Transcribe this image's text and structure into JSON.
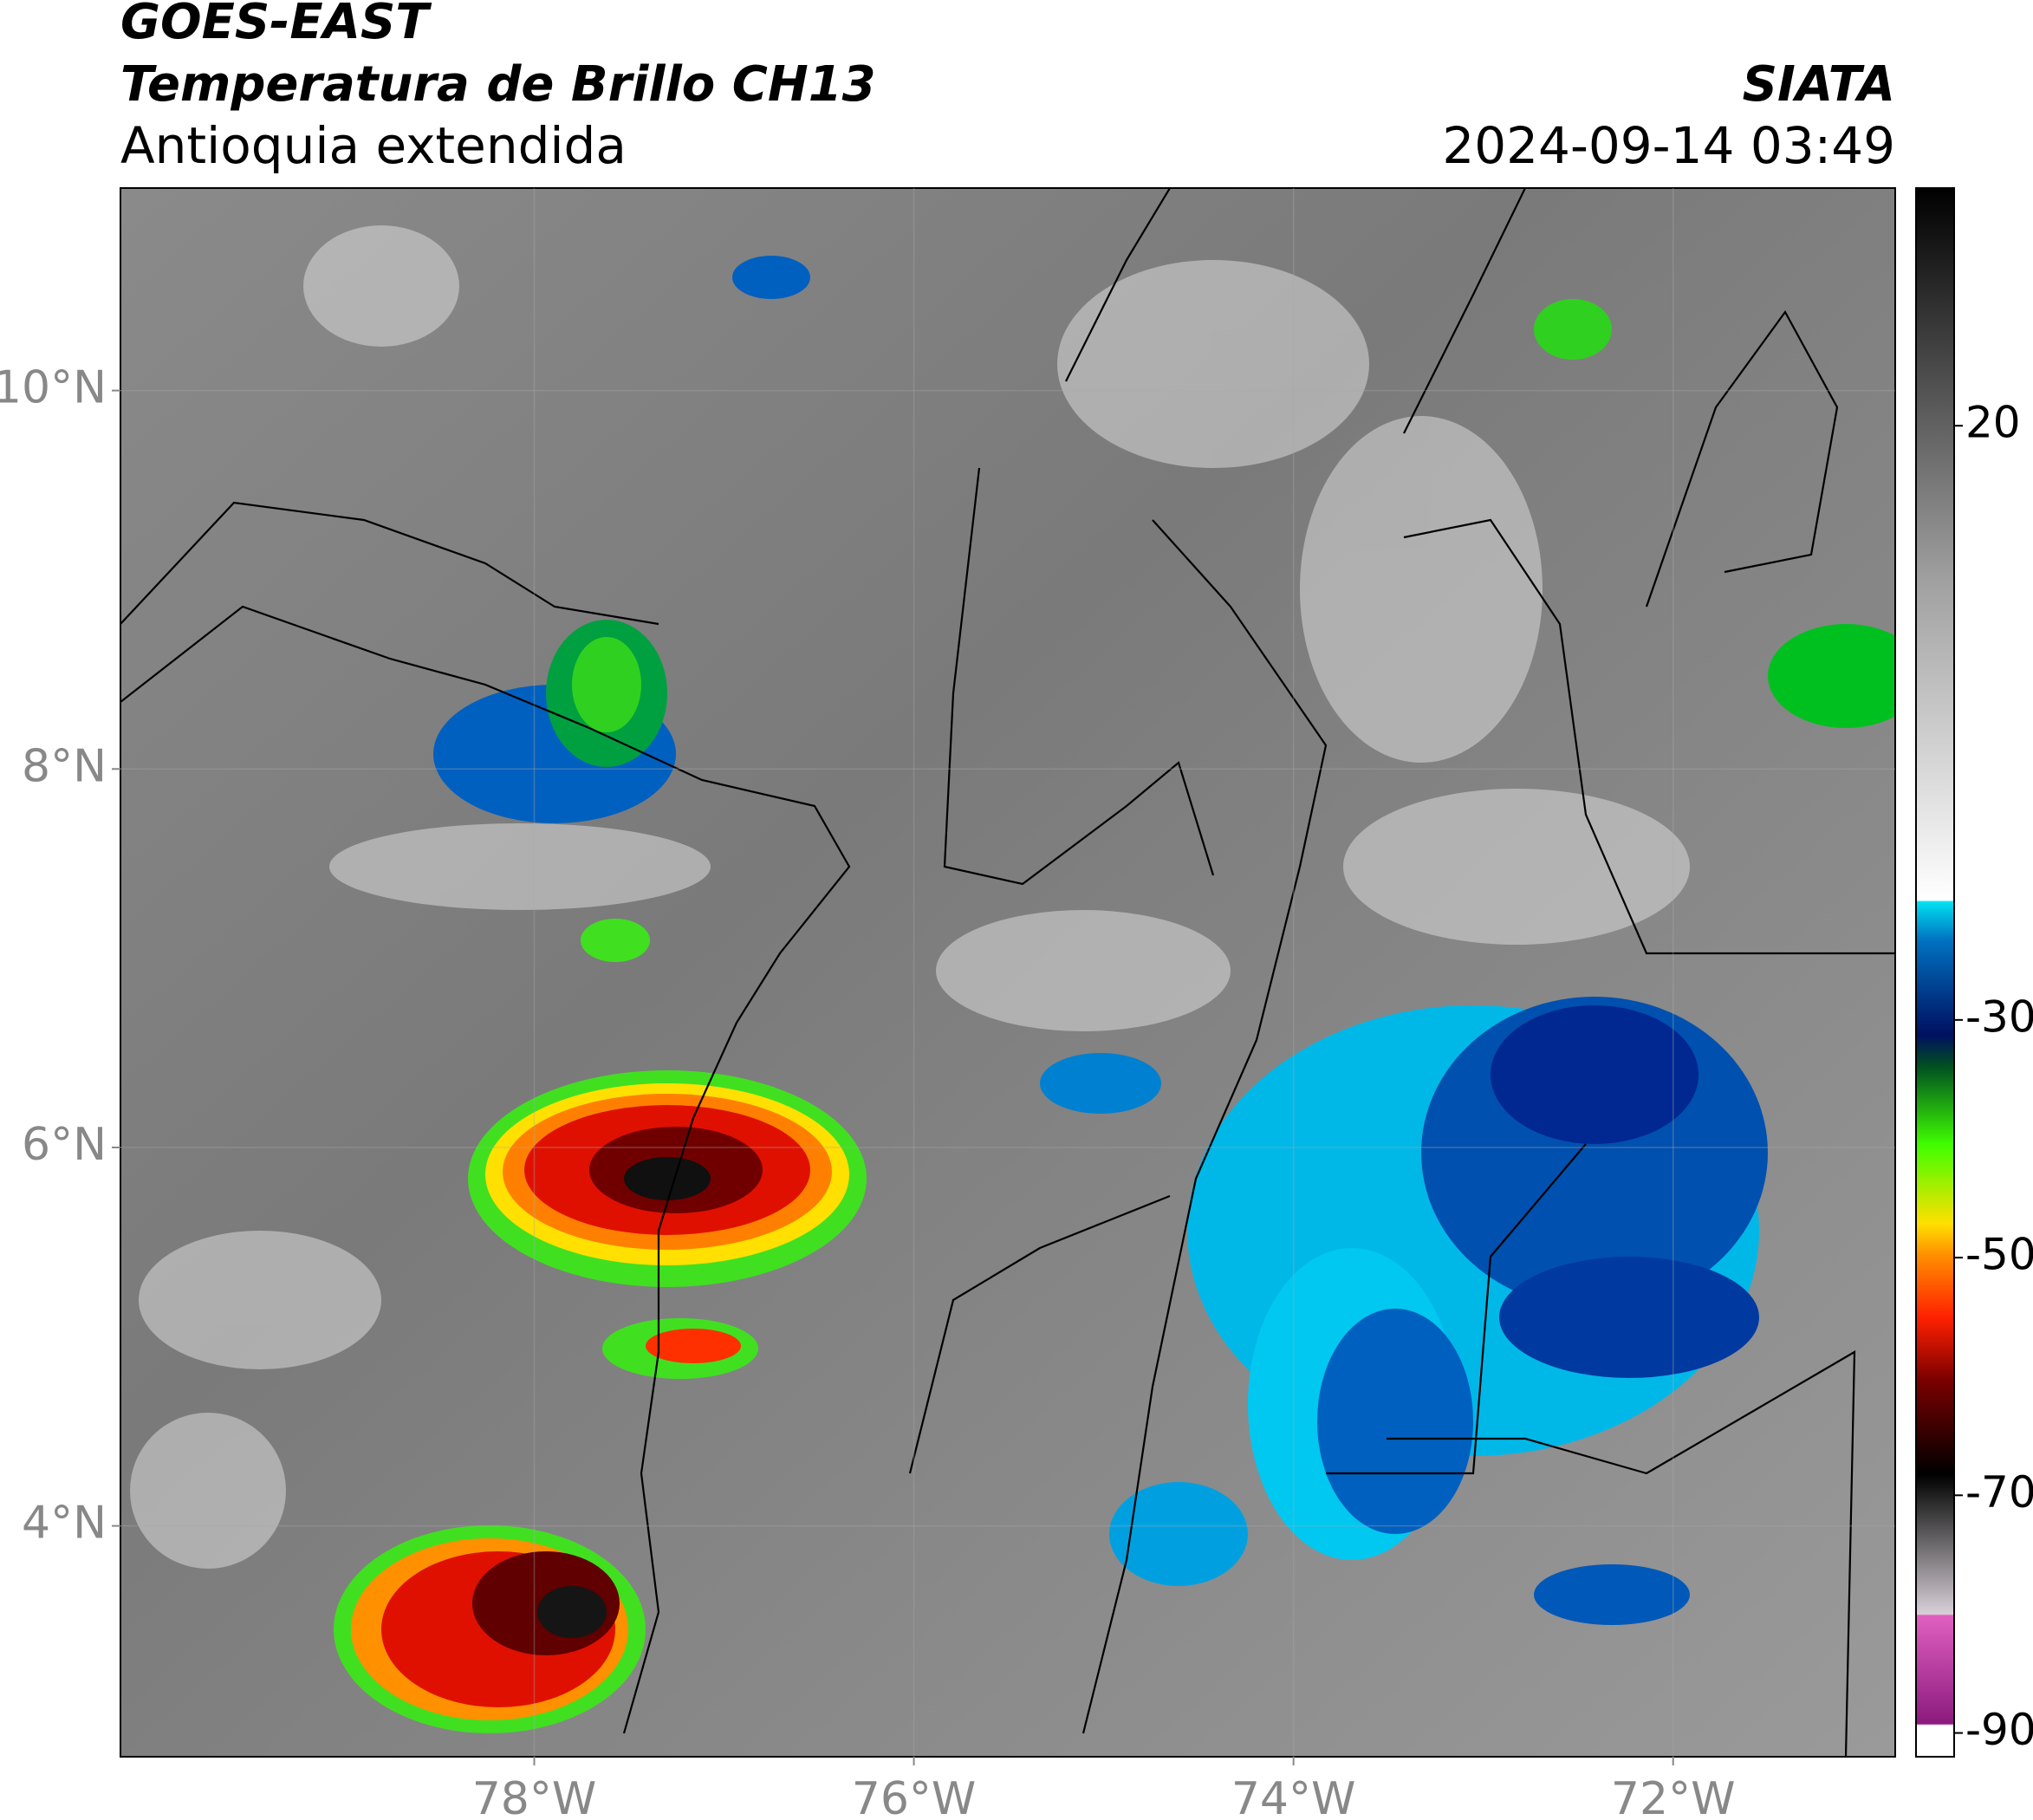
{
  "header": {
    "title": "GOES-EAST",
    "subtitle": "Temperatura de Brillo CH13",
    "region": "Antioquia extendida",
    "source": "SIATA",
    "datetime": "2024-09-14 03:49"
  },
  "map": {
    "xlim": [
      -80.18,
      -70.83
    ],
    "ylim": [
      2.78,
      11.07
    ],
    "xticks": [
      {
        "value": -78,
        "label": "78°W"
      },
      {
        "value": -76,
        "label": "76°W"
      },
      {
        "value": -74,
        "label": "74°W"
      },
      {
        "value": -72,
        "label": "72°W"
      }
    ],
    "yticks": [
      {
        "value": 4,
        "label": "4°N"
      },
      {
        "value": 6,
        "label": "6°N"
      },
      {
        "value": 8,
        "label": "8°N"
      },
      {
        "value": 10,
        "label": "10°N"
      }
    ]
  },
  "colorbar": {
    "clim": [
      -92,
      40
    ],
    "ticks": [
      20,
      -30,
      -50,
      -70,
      -90
    ]
  }
}
